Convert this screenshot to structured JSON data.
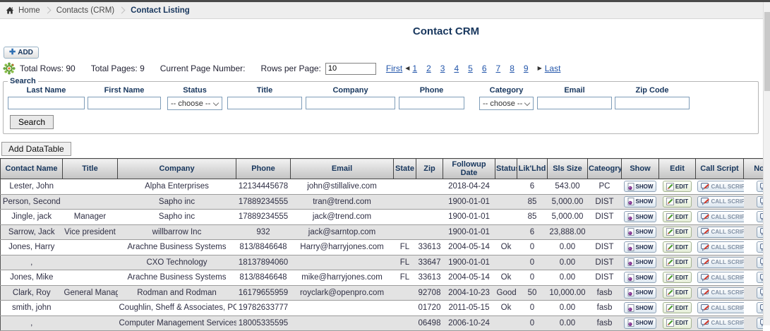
{
  "breadcrumb": {
    "home": "Home",
    "section": "Contacts (CRM)",
    "current": "Contact Listing"
  },
  "page_title": "Contact CRM",
  "toolbar": {
    "add_label": "ADD"
  },
  "pagination": {
    "total_rows_label": "Total Rows: 90",
    "total_pages_label": "Total Pages: 9",
    "current_page_label": "Current Page Number:",
    "rows_per_page_label": "Rows per Page:",
    "rows_per_page_value": "10",
    "first_label": "First",
    "last_label": "Last",
    "pages": [
      "1",
      "2",
      "3",
      "4",
      "5",
      "6",
      "7",
      "8",
      "9"
    ]
  },
  "search": {
    "legend": "Search",
    "button_label": "Search",
    "fields": [
      {
        "label": "Last Name",
        "type": "input",
        "value": ""
      },
      {
        "label": "First Name",
        "type": "input",
        "value": ""
      },
      {
        "label": "Status",
        "type": "select",
        "value": "-- choose --"
      },
      {
        "label": "Title",
        "type": "input",
        "value": ""
      },
      {
        "label": "Company",
        "type": "input",
        "value": ""
      },
      {
        "label": "Phone",
        "type": "input",
        "value": ""
      },
      {
        "label": "Category",
        "type": "select",
        "value": "-- choose --"
      },
      {
        "label": "Email",
        "type": "input",
        "value": ""
      },
      {
        "label": "Zip Code",
        "type": "input",
        "value": ""
      }
    ]
  },
  "datatable_button_label": "Add DataTable",
  "table": {
    "headers": [
      "Contact Name",
      "Title",
      "Company",
      "Phone",
      "Email",
      "State",
      "Zip",
      "Followup Date",
      "Status",
      "Lik'Lhd",
      "Sls Size",
      "Cateogry",
      "Show",
      "Edit",
      "Call Script",
      "Notes"
    ],
    "action_buttons": {
      "show": "SHOW",
      "edit": "EDIT",
      "call_script": "CALL SCRIPT",
      "notes": ""
    },
    "rows": [
      [
        "Lester, John",
        "",
        "Alpha Enterprises",
        "12134445678",
        "john@stillalive.com",
        "",
        "",
        "2018-04-24",
        "",
        "6",
        "543.00",
        "PC"
      ],
      [
        "Person, Second",
        "",
        "Sapho inc",
        "17889234555",
        "tran@trend.com",
        "",
        "",
        "1900-01-01",
        "",
        "85",
        "5,000.00",
        "DIST"
      ],
      [
        "Jingle, jack",
        "Manager",
        "Sapho inc",
        "17889234555",
        "jack@trend.com",
        "",
        "",
        "1900-01-01",
        "",
        "85",
        "5,000.00",
        "DIST"
      ],
      [
        "Sarrow, Jack",
        "Vice president",
        "willbarrow Inc",
        "932",
        "jack@sarntop.com",
        "",
        "",
        "1900-01-01",
        "",
        "6",
        "23,888.00",
        ""
      ],
      [
        "Jones, Harry",
        "",
        "Arachne Business Systems",
        "813/8846648",
        "Harry@harryjones.com",
        "FL",
        "33613",
        "2004-05-14",
        "Ok",
        "0",
        "0.00",
        "DIST"
      ],
      [
        ",",
        "",
        "CXO Technology",
        "18137894060",
        "",
        "FL",
        "33647",
        "1900-01-01",
        "",
        "0",
        "0.00",
        "DIST"
      ],
      [
        "Jones, Mike",
        "",
        "Arachne Business Systems",
        "813/8846648",
        "mike@harryjones.com",
        "FL",
        "33613",
        "2004-05-14",
        "Ok",
        "0",
        "0.00",
        "DIST"
      ],
      [
        "Clark, Roy",
        "General Manager",
        "Rodman and Rodman",
        "16179655959",
        "royclark@openpro.com",
        "",
        "92708",
        "2004-10-23",
        "Good",
        "50",
        "10,000.00",
        "fasb"
      ],
      [
        "smith, john",
        "",
        "Coughlin, Sheff & Associates, PC",
        "19782633777",
        "",
        "",
        "01720",
        "2011-05-15",
        "Ok",
        "0",
        "0.00",
        "fasb"
      ],
      [
        ",",
        "",
        "Computer Management Services L",
        "18005335595",
        "",
        "",
        "06498",
        "2006-10-24",
        "",
        "0",
        "0.00",
        "fasb"
      ]
    ]
  },
  "colors": {
    "heading_text": "#17365D",
    "link": "#2255aa",
    "row_alt": "#e3e3e3",
    "header_gradient_bottom": "#c3c3c3",
    "breadcrumb_bg": "#eeeeee"
  }
}
